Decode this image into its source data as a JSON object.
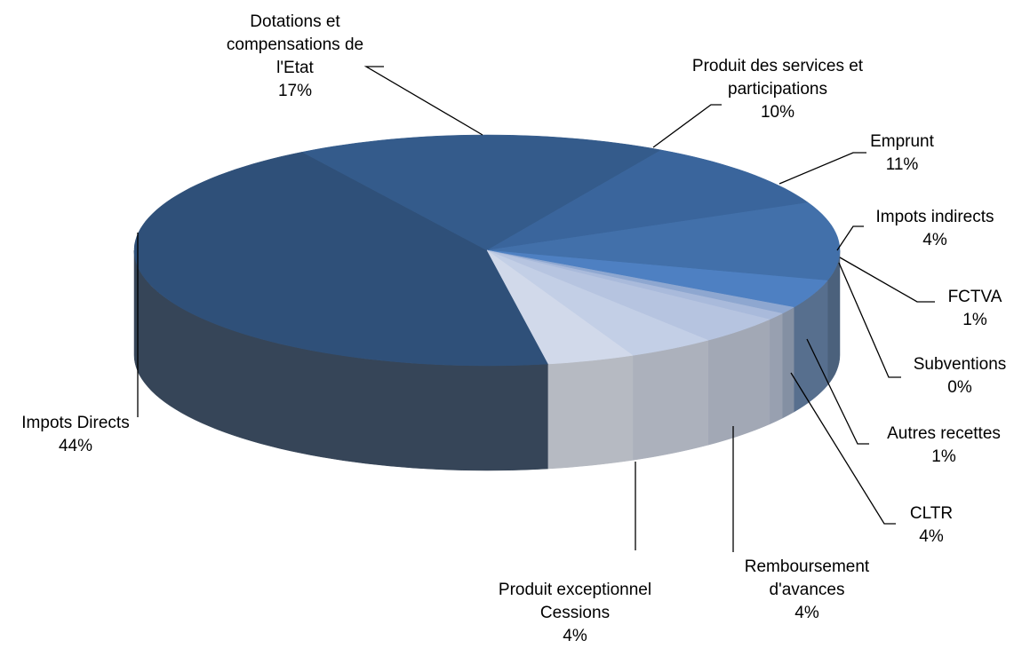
{
  "chart_data": {
    "type": "pie3d",
    "categories": [
      "Impots Directs",
      "Dotations et compensations de l'Etat",
      "Produit des services et participations",
      "Emprunt",
      "Impots indirects",
      "FCTVA",
      "Subventions",
      "Autres recettes",
      "CLTR",
      "Remboursement d'avances",
      "Produit exceptionnel Cessions"
    ],
    "values": [
      44,
      17,
      10,
      11,
      4,
      1,
      0,
      1,
      4,
      4,
      4
    ],
    "value_labels": [
      "44%",
      "17%",
      "10%",
      "11%",
      "4%",
      "1%",
      "0%",
      "1%",
      "4%",
      "4%",
      "4%"
    ],
    "colors": [
      "#2f5079",
      "#345b8b",
      "#3a659c",
      "#4270aa",
      "#4e80c2",
      "#8ea7d0",
      "#9fb2d7",
      "#a9badb",
      "#b6c4e0",
      "#c3cfe6",
      "#d1d9ea"
    ]
  }
}
